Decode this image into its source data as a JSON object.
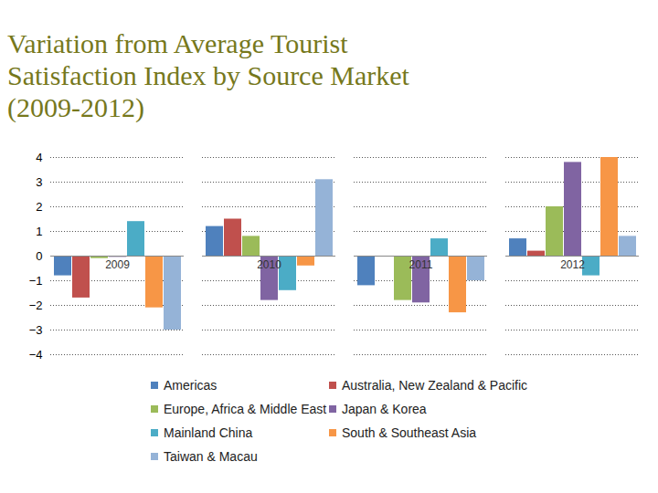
{
  "chart_data": {
    "type": "bar",
    "title": "Variation from Average Tourist Satisfaction Index by Source Market (2009-2012)",
    "categories": [
      "2009",
      "2010",
      "2011",
      "2012"
    ],
    "series": [
      {
        "name": "Americas",
        "color": "#4f81bd",
        "values": [
          -0.8,
          1.2,
          -1.2,
          0.7
        ]
      },
      {
        "name": "Australia, New Zealand & Pacific",
        "color": "#c0504d",
        "values": [
          -1.7,
          1.5,
          0,
          0.2
        ]
      },
      {
        "name": "Europe, Africa & Middle East",
        "color": "#9bbb59",
        "values": [
          -0.1,
          0.8,
          -1.8,
          2.0
        ]
      },
      {
        "name": "Japan & Korea",
        "color": "#8064a2",
        "values": [
          -0.05,
          -1.8,
          -1.9,
          3.8
        ]
      },
      {
        "name": "Mainland China",
        "color": "#4bacc6",
        "values": [
          1.4,
          -1.4,
          0.7,
          -0.8
        ]
      },
      {
        "name": "South & Southeast Asia",
        "color": "#f79646",
        "values": [
          -2.1,
          -0.4,
          -2.3,
          4.0
        ]
      },
      {
        "name": "Taiwan & Macau",
        "color": "#95b3d7",
        "values": [
          -3.0,
          3.1,
          -1.0,
          0.8
        ]
      }
    ],
    "ylim": [
      -4,
      4
    ],
    "yticks": [
      -4,
      -3,
      -2,
      -1,
      0,
      1,
      2,
      3,
      4
    ],
    "grid": true,
    "legend": "bottom"
  }
}
